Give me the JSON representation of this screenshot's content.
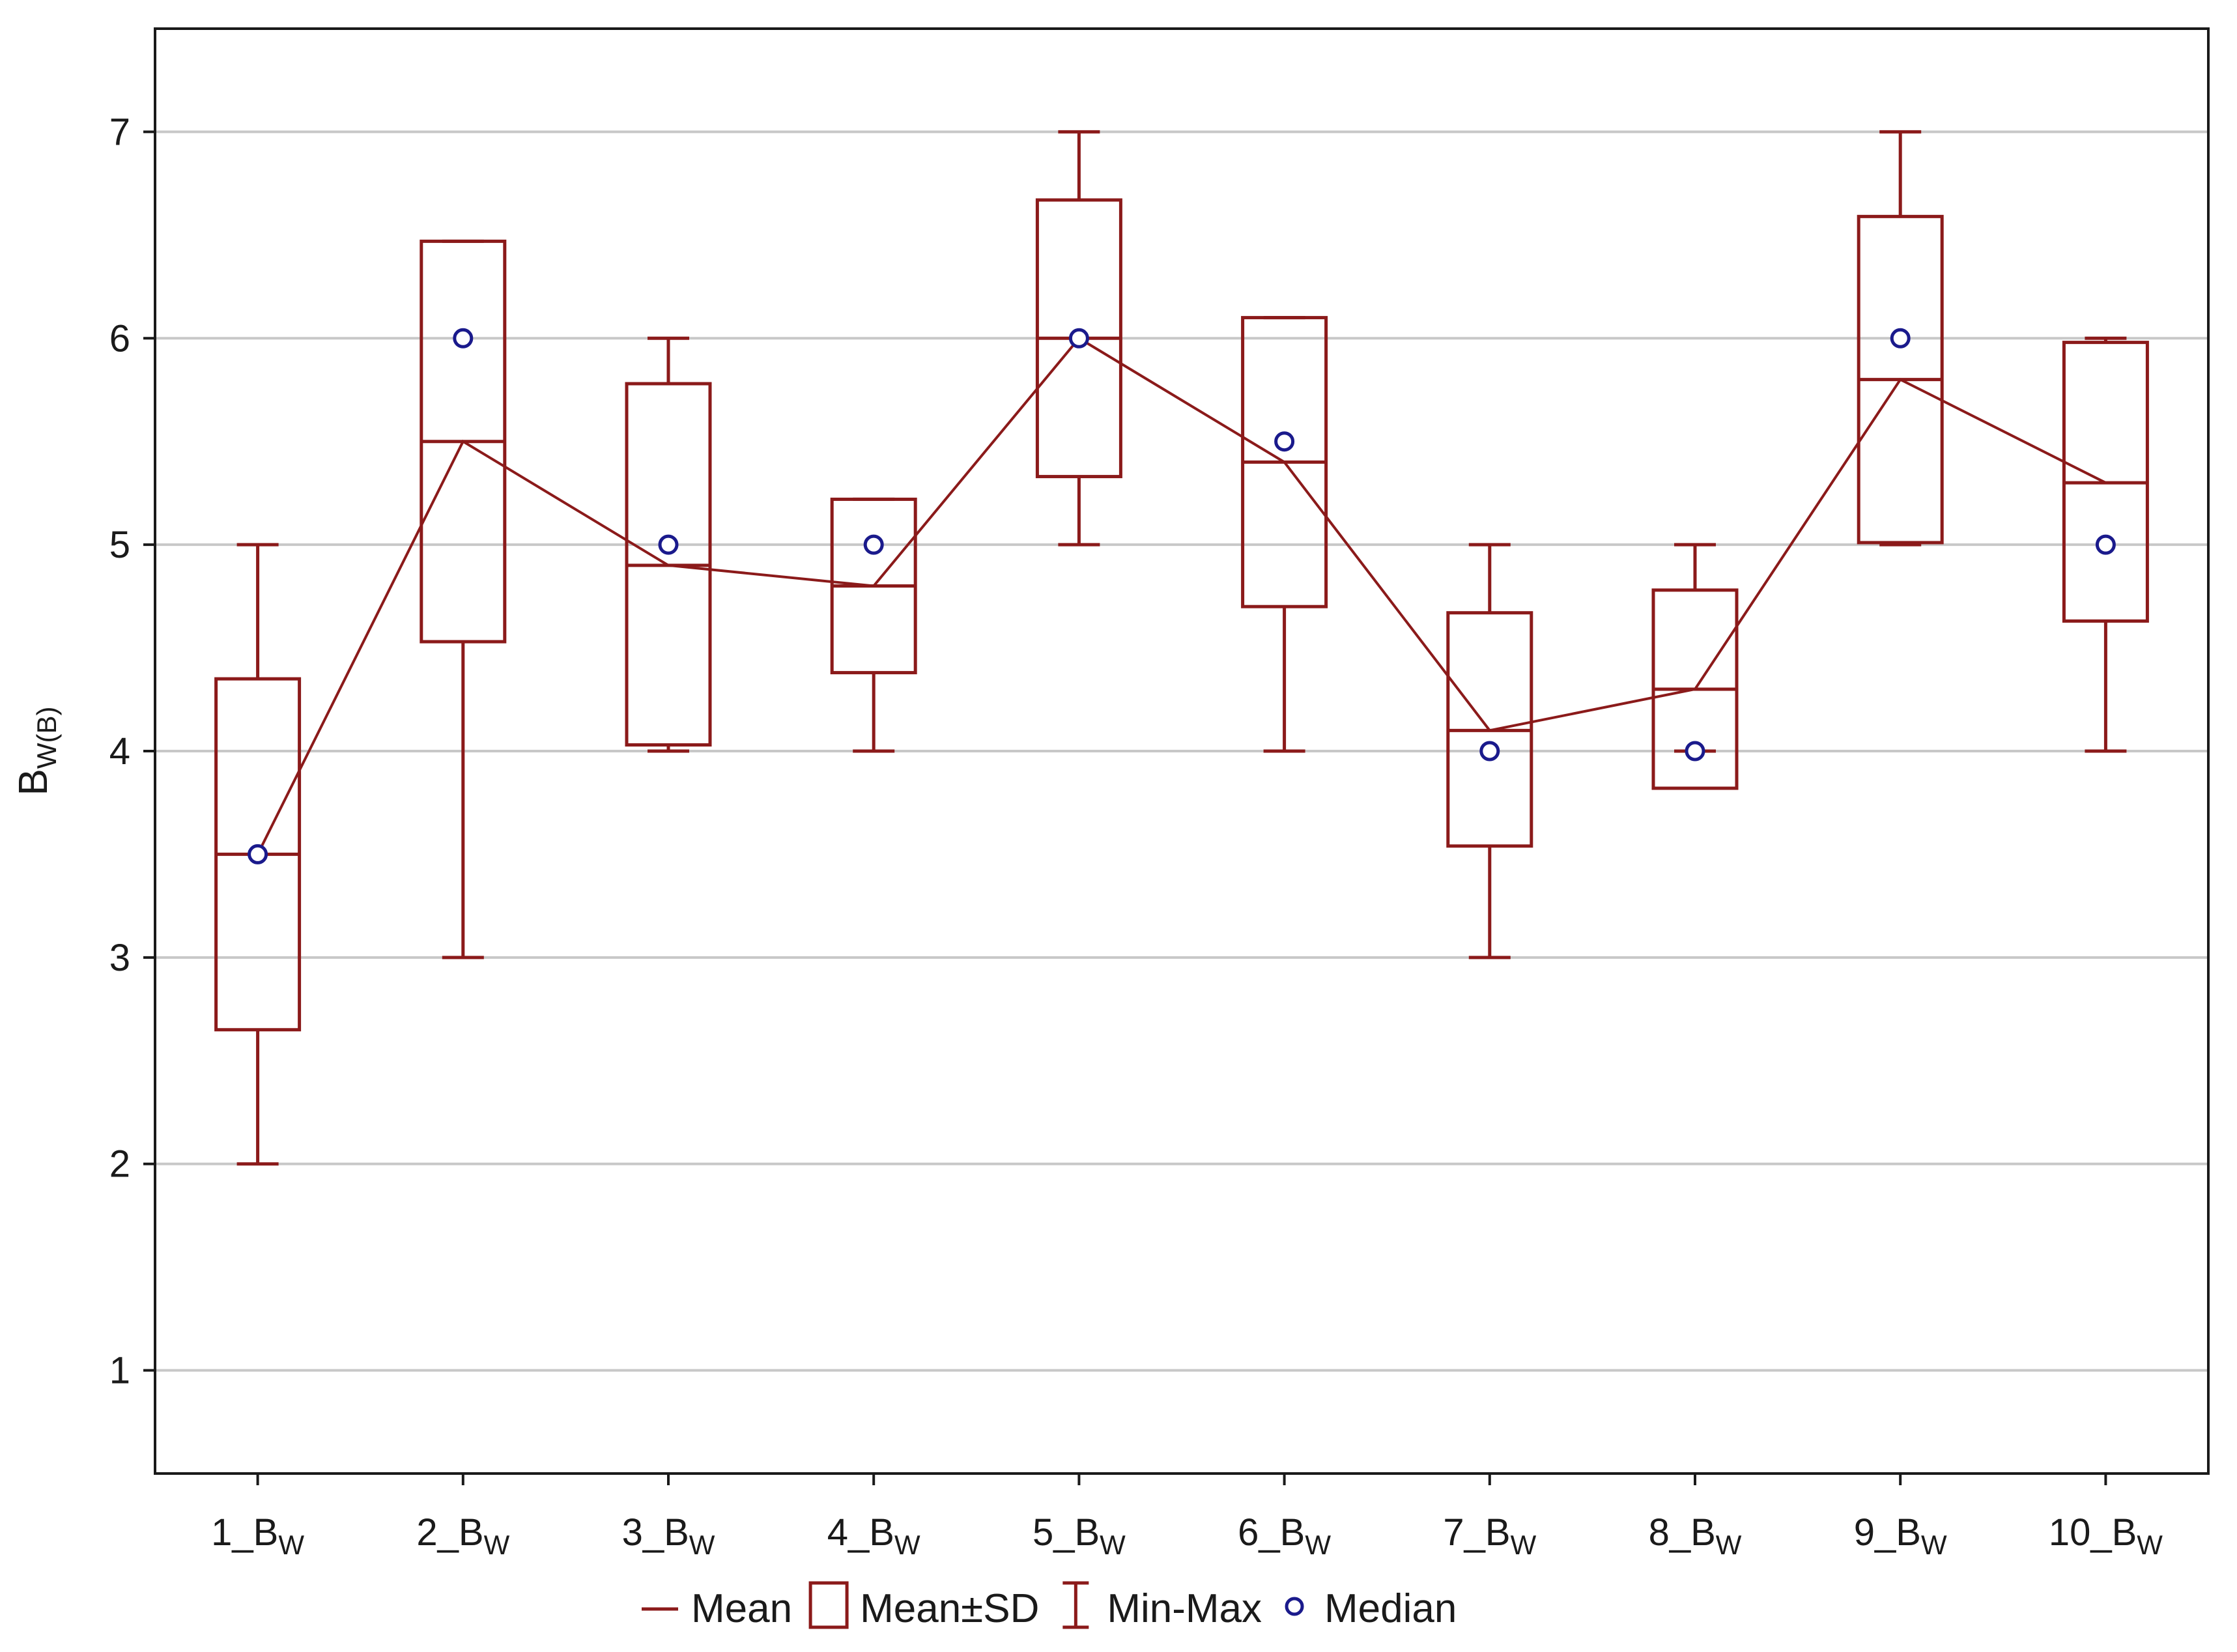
{
  "chart_data": {
    "type": "box",
    "ylabel": "B",
    "ylabel_sub": "W(B)",
    "ylim": [
      0.5,
      7.5
    ],
    "yticks": [
      1,
      2,
      3,
      4,
      5,
      6,
      7
    ],
    "grid": true,
    "legend_position": "bottom",
    "categories": [
      {
        "main": "1_B",
        "sub": "W"
      },
      {
        "main": "2_B",
        "sub": "W"
      },
      {
        "main": "3_B",
        "sub": "W"
      },
      {
        "main": "4_B",
        "sub": "W"
      },
      {
        "main": "5_B",
        "sub": "W"
      },
      {
        "main": "6_B",
        "sub": "W"
      },
      {
        "main": "7_B",
        "sub": "W"
      },
      {
        "main": "8_B",
        "sub": "W"
      },
      {
        "main": "9_B",
        "sub": "W"
      },
      {
        "main": "10_B",
        "sub": "W"
      }
    ],
    "mean": [
      3.5,
      5.5,
      4.9,
      4.8,
      6.0,
      5.4,
      4.1,
      4.3,
      5.8,
      5.3
    ],
    "sd_lower": [
      2.65,
      4.53,
      4.03,
      4.38,
      5.33,
      4.7,
      3.54,
      3.82,
      5.01,
      4.63
    ],
    "sd_upper": [
      4.35,
      6.47,
      5.78,
      5.22,
      6.67,
      6.1,
      4.67,
      4.78,
      6.59,
      5.98
    ],
    "min": [
      2,
      3,
      4,
      4,
      5,
      4,
      3,
      4,
      5,
      4
    ],
    "max": [
      5,
      6.47,
      6,
      5.22,
      7,
      6.1,
      5,
      5,
      7,
      6
    ],
    "median": [
      3.5,
      6,
      5,
      5,
      6,
      5.5,
      4,
      4,
      6,
      5
    ],
    "legend": [
      {
        "key": "mean",
        "label": "Mean"
      },
      {
        "key": "sd",
        "label": "Mean±SD"
      },
      {
        "key": "minmax",
        "label": "Min-Max"
      },
      {
        "key": "median",
        "label": "Median"
      }
    ],
    "colors": {
      "box": "#8b1a1a",
      "median": "#1a1a8c",
      "grid": "#c8c8c8",
      "axis": "#1a1a1a"
    }
  }
}
